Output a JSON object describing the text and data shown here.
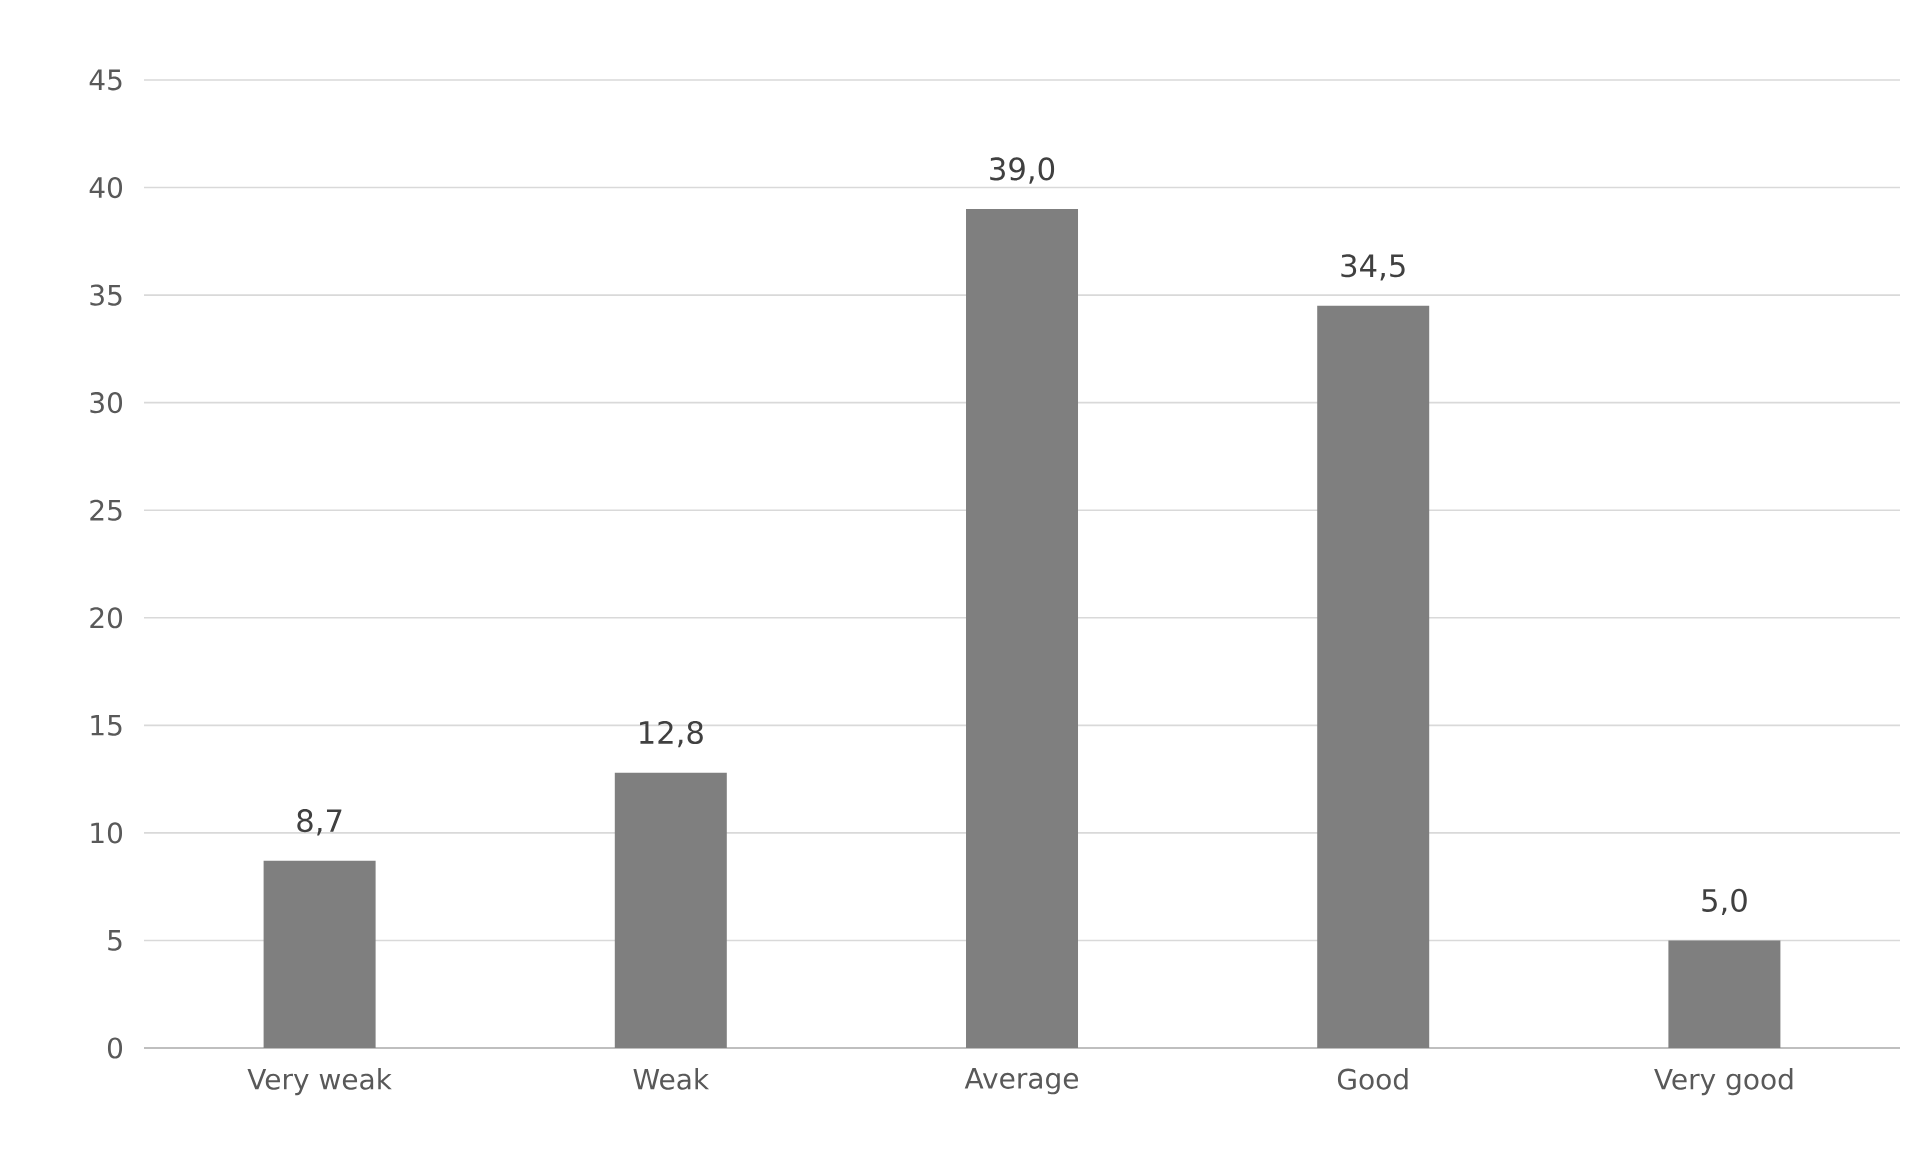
{
  "chart_data": {
    "type": "bar",
    "categories": [
      "Very weak",
      "Weak",
      "Average",
      "Good",
      "Very good"
    ],
    "values": [
      8.7,
      12.8,
      39.0,
      34.5,
      5.0
    ],
    "value_labels": [
      "8,7",
      "12,8",
      "39,0",
      "34,5",
      "5,0"
    ],
    "color": "#7f7f7f",
    "ylim": [
      0,
      45
    ],
    "yticks": [
      0,
      5,
      10,
      15,
      20,
      25,
      30,
      35,
      40,
      45
    ],
    "grid": "y"
  }
}
